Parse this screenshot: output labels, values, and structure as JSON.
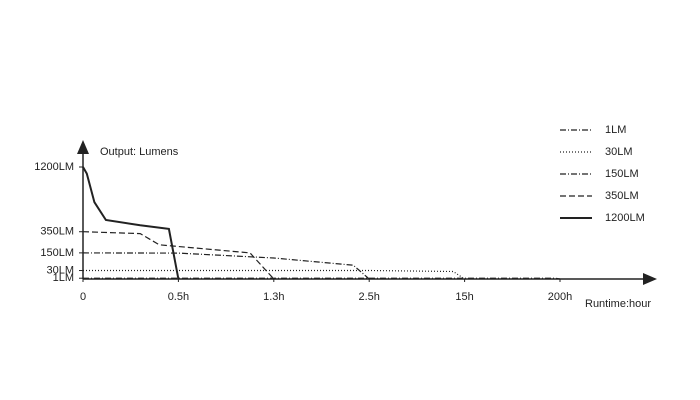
{
  "chart_data": {
    "type": "line",
    "ylabel": "Output: Lumens",
    "xlabel": "Runtime:hour",
    "xlim": [
      0,
      200
    ],
    "xticks": [
      0,
      {
        "value": 0.5,
        "label": "0.5h"
      },
      {
        "value": 1.3,
        "label": "1.3h"
      },
      {
        "value": 2.5,
        "label": "2.5h"
      },
      {
        "value": 15,
        "label": "15h"
      },
      {
        "value": 200,
        "label": "200h"
      }
    ],
    "ylim": [
      0,
      1200
    ],
    "yticks": [
      {
        "value": 1200,
        "label": "1200LM"
      },
      {
        "value": 350,
        "label": "350LM"
      },
      {
        "value": 150,
        "label": "150LM"
      },
      {
        "value": 30,
        "label": "30LM"
      },
      {
        "value": 1,
        "label": "1LM"
      }
    ],
    "legend": "top-right",
    "series": [
      {
        "name": "1LM",
        "color": "#222222",
        "dash": "dashdot",
        "x": [
          0,
          15,
          190,
          200
        ],
        "values": [
          1,
          1,
          1,
          0
        ]
      },
      {
        "name": "30LM",
        "color": "#222222",
        "dash": "dotted",
        "x": [
          0,
          2.5,
          13.5,
          15
        ],
        "values": [
          30,
          30,
          25,
          0
        ]
      },
      {
        "name": "150LM",
        "color": "#222222",
        "dash": "dashdot",
        "x": [
          0,
          0.5,
          1.3,
          2.3,
          2.5
        ],
        "values": [
          150,
          148,
          110,
          60,
          0
        ]
      },
      {
        "name": "350LM",
        "color": "#222222",
        "dash": "dashed",
        "x": [
          0,
          0.3,
          0.4,
          1.1,
          1.3
        ],
        "values": [
          350,
          330,
          220,
          150,
          0
        ]
      },
      {
        "name": "1200LM",
        "color": "#222222",
        "dash": "solid",
        "x": [
          0,
          0.02,
          0.06,
          0.12,
          0.3,
          0.45,
          0.5
        ],
        "values": [
          1200,
          1100,
          700,
          480,
          420,
          380,
          0
        ]
      }
    ]
  }
}
